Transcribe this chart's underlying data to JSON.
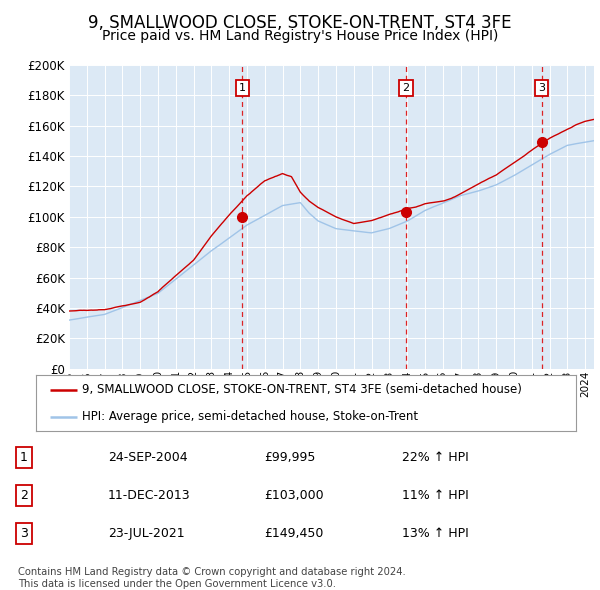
{
  "title": "9, SMALLWOOD CLOSE, STOKE-ON-TRENT, ST4 3FE",
  "subtitle": "Price paid vs. HM Land Registry's House Price Index (HPI)",
  "title_fontsize": 12,
  "subtitle_fontsize": 10,
  "bg_color": "#dce9f5",
  "fig_bg_color": "#ffffff",
  "red_line_color": "#cc0000",
  "blue_line_color": "#a0c4e8",
  "dashed_line_color": "#dd0000",
  "ylim": [
    0,
    200000
  ],
  "yticks": [
    0,
    20000,
    40000,
    60000,
    80000,
    100000,
    120000,
    140000,
    160000,
    180000,
    200000
  ],
  "ytick_labels": [
    "£0",
    "£20K",
    "£40K",
    "£60K",
    "£80K",
    "£100K",
    "£120K",
    "£140K",
    "£160K",
    "£180K",
    "£200K"
  ],
  "legend_red": "9, SMALLWOOD CLOSE, STOKE-ON-TRENT, ST4 3FE (semi-detached house)",
  "legend_blue": "HPI: Average price, semi-detached house, Stoke-on-Trent",
  "sale1_date": 2004.73,
  "sale1_price": 99995,
  "sale2_date": 2013.94,
  "sale2_price": 103000,
  "sale3_date": 2021.55,
  "sale3_price": 149450,
  "table_rows": [
    [
      "1",
      "24-SEP-2004",
      "£99,995",
      "22% ↑ HPI"
    ],
    [
      "2",
      "11-DEC-2013",
      "£103,000",
      "11% ↑ HPI"
    ],
    [
      "3",
      "23-JUL-2021",
      "£149,450",
      "13% ↑ HPI"
    ]
  ],
  "footer": "Contains HM Land Registry data © Crown copyright and database right 2024.\nThis data is licensed under the Open Government Licence v3.0.",
  "xstart": 1995.0,
  "xend": 2024.5
}
